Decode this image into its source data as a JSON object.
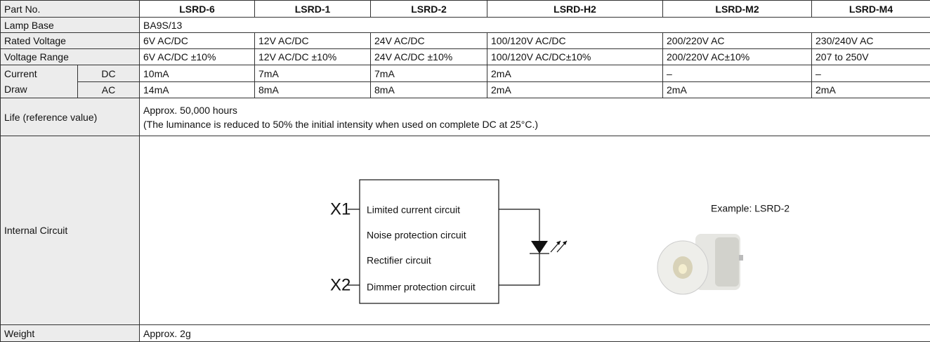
{
  "table": {
    "header": {
      "label": "Part No.",
      "parts": [
        "LSRD-6",
        "LSRD-1",
        "LSRD-2",
        "LSRD-H2",
        "LSRD-M2",
        "LSRD-M4"
      ]
    },
    "lamp_base": {
      "label": "Lamp Base",
      "value": "BA9S/13"
    },
    "rated_voltage": {
      "label": "Rated Voltage",
      "values": [
        "6V AC/DC",
        "12V AC/DC",
        "24V AC/DC",
        "100/120V AC/DC",
        "200/220V AC",
        "230/240V AC"
      ]
    },
    "voltage_range": {
      "label": "Voltage Range",
      "values": [
        "6V AC/DC ±10%",
        "12V AC/DC ±10%",
        "24V AC/DC ±10%",
        "100/120V AC/DC±10%",
        "200/220V AC±10%",
        "207 to 250V"
      ]
    },
    "current_draw": {
      "label": "Current Draw",
      "dc": {
        "label": "DC",
        "values": [
          "10mA",
          "7mA",
          "7mA",
          "2mA",
          "–",
          "–"
        ]
      },
      "ac": {
        "label": "AC",
        "values": [
          "14mA",
          "8mA",
          "8mA",
          "2mA",
          "2mA",
          "2mA"
        ]
      }
    },
    "life": {
      "label": "Life (reference value)",
      "lines": [
        "Approx. 50,000 hours",
        "(The luminance is reduced to 50% the initial intensity when used on complete DC at 25°C.)"
      ]
    },
    "internal_circuit": {
      "label": "Internal Circuit",
      "terminals": [
        "X1",
        "X2"
      ],
      "blocks": [
        "Limited current circuit",
        "Noise protection circuit",
        "Rectifier circuit",
        "Dimmer protection circuit"
      ],
      "example": "Example: LSRD-2"
    },
    "weight": {
      "label": "Weight",
      "value": "Approx. 2g"
    }
  }
}
